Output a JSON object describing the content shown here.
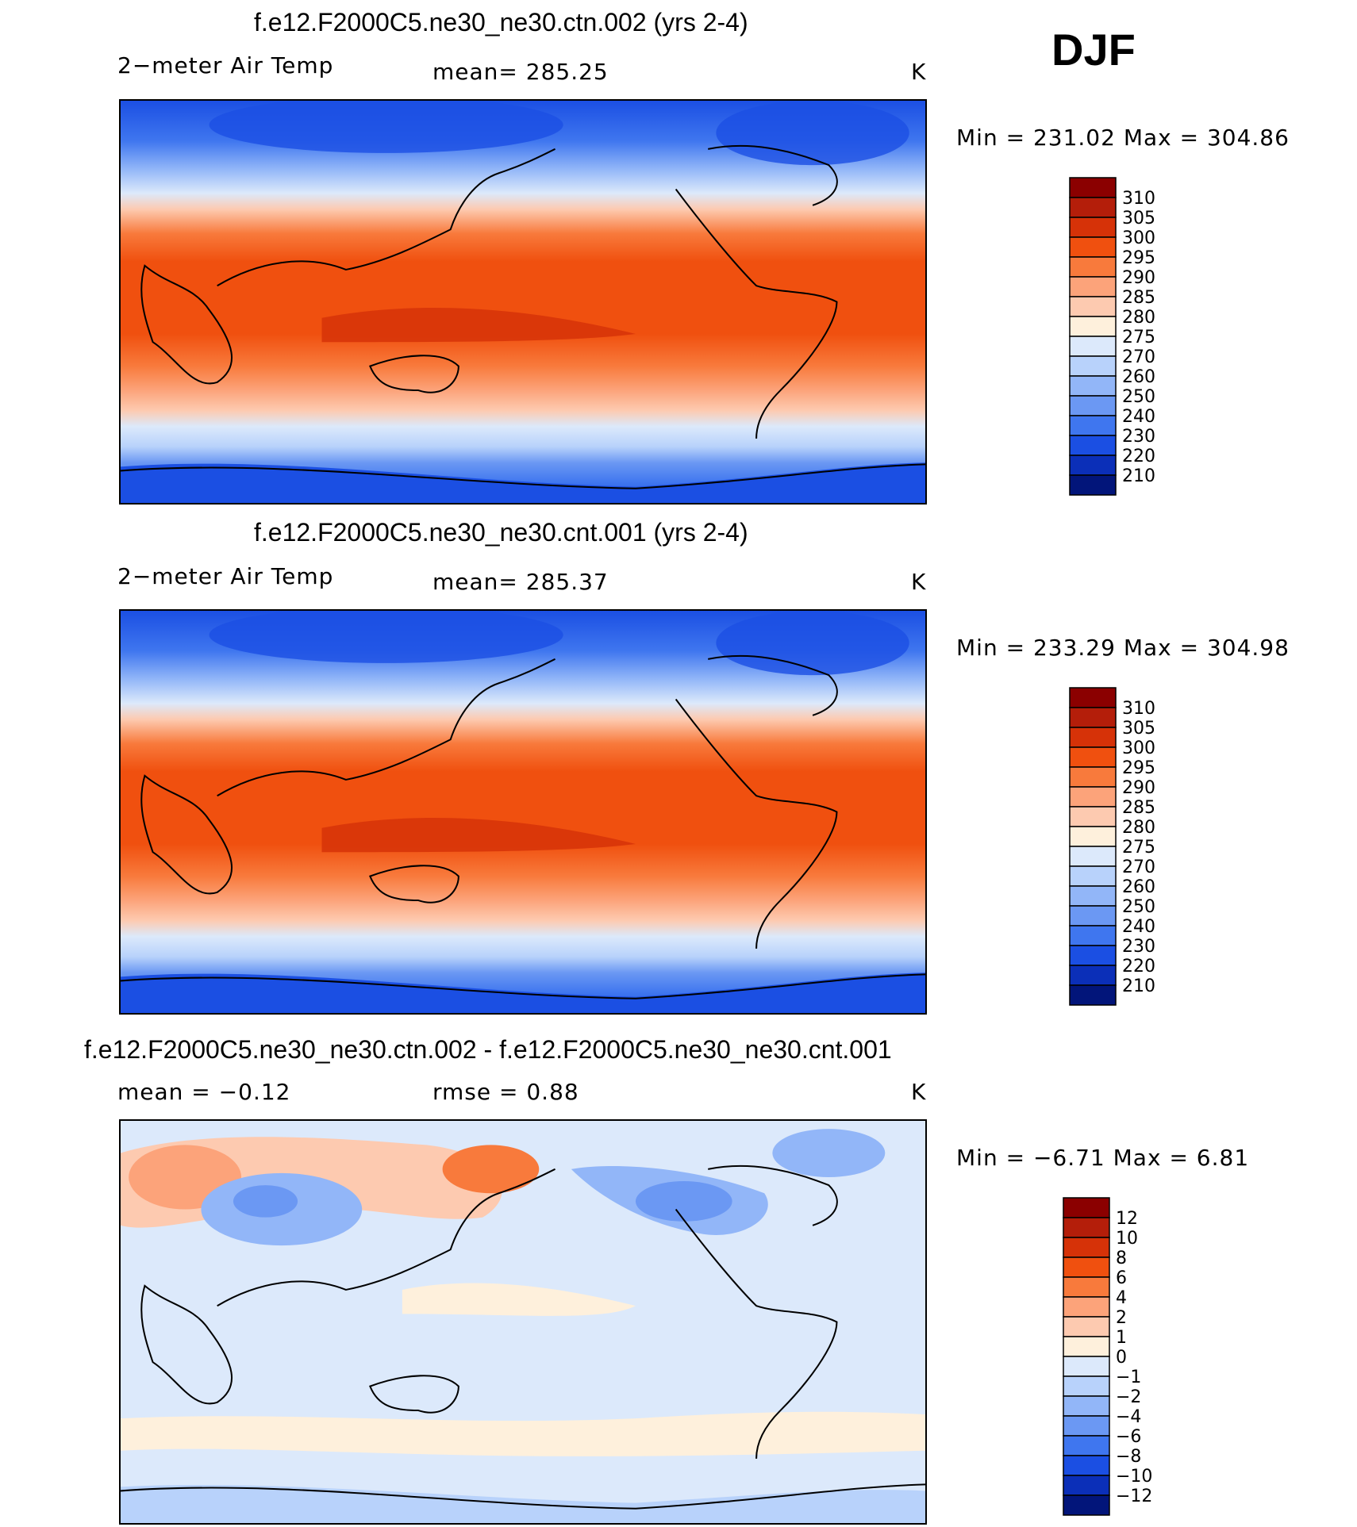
{
  "season": "DJF",
  "panels": [
    {
      "title": "f.e12.F2000C5.ne30_ne30.ctn.002 (yrs 2-4)",
      "left_label": "2−meter Air Temp",
      "center_label": "mean=  285.25",
      "unit": "K",
      "minmax": "Min  =  231.02  Max  =  304.86",
      "legend": {
        "levels": [
          "310",
          "305",
          "300",
          "295",
          "290",
          "285",
          "280",
          "275",
          "270",
          "260",
          "250",
          "240",
          "230",
          "220",
          "210"
        ],
        "colors": [
          "#8b0000",
          "#b41e0a",
          "#d63208",
          "#f0500f",
          "#f87a3c",
          "#fca37a",
          "#fdcab0",
          "#fef0dc",
          "#dce9fb",
          "#b8d2fb",
          "#92b6f8",
          "#6b98f3",
          "#3f76ef",
          "#1b4fe3",
          "#0b2fb8",
          "#02157a"
        ]
      }
    },
    {
      "title": "f.e12.F2000C5.ne30_ne30.cnt.001 (yrs 2-4)",
      "left_label": "2−meter Air Temp",
      "center_label": "mean=  285.37",
      "unit": "K",
      "minmax": "Min  =  233.29  Max  =  304.98",
      "legend": {
        "levels": [
          "310",
          "305",
          "300",
          "295",
          "290",
          "285",
          "280",
          "275",
          "270",
          "260",
          "250",
          "240",
          "230",
          "220",
          "210"
        ],
        "colors": [
          "#8b0000",
          "#b41e0a",
          "#d63208",
          "#f0500f",
          "#f87a3c",
          "#fca37a",
          "#fdcab0",
          "#fef0dc",
          "#dce9fb",
          "#b8d2fb",
          "#92b6f8",
          "#6b98f3",
          "#3f76ef",
          "#1b4fe3",
          "#0b2fb8",
          "#02157a"
        ]
      }
    },
    {
      "title": "f.e12.F2000C5.ne30_ne30.ctn.002 - f.e12.F2000C5.ne30_ne30.cnt.001",
      "left_label": "mean  =    −0.12",
      "center_label": "rmse  =     0.88",
      "unit": "K",
      "minmax": "Min  =    −6.71  Max  =       6.81",
      "legend": {
        "levels": [
          "12",
          "10",
          "8",
          "6",
          "4",
          "2",
          "1",
          "0",
          "−1",
          "−2",
          "−4",
          "−6",
          "−8",
          "−10",
          "−12"
        ],
        "colors": [
          "#8b0000",
          "#b41e0a",
          "#d63208",
          "#f0500f",
          "#f87a3c",
          "#fca37a",
          "#fdcab0",
          "#fef0dc",
          "#dce9fb",
          "#b8d2fb",
          "#92b6f8",
          "#6b98f3",
          "#3f76ef",
          "#1b4fe3",
          "#0b2fb8",
          "#02157a"
        ]
      }
    }
  ]
}
